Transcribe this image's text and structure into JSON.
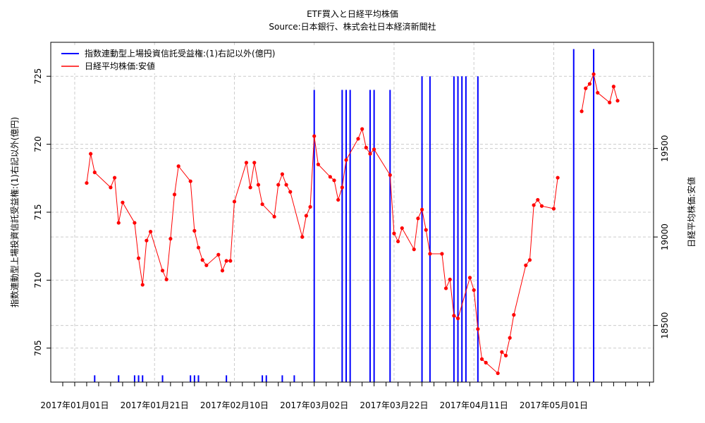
{
  "chart_data": {
    "type": "line",
    "title": "ETF買入と日経平均株価",
    "subtitle": "Source:日本銀行、株式会社日本経済新聞社",
    "ylabel_left": "指数連動型上場投資信託受益権:(1)右記以外(億円)",
    "ylabel_right": "日経平均株価:安値",
    "x_start": "2016-12-26",
    "x_end": "2017-05-26",
    "x_tick_labels": [
      "2017年01月01日",
      "2017年01月21日",
      "2017年02月10日",
      "2017年03月02日",
      "2017年03月22日",
      "2017年04月11日",
      "2017年05月01日"
    ],
    "y_left": {
      "ticks": [
        705,
        710,
        715,
        720,
        725
      ],
      "range": [
        702.5,
        727.5
      ]
    },
    "y_right": {
      "ticks": [
        18500,
        19000,
        19500
      ],
      "range": [
        18180,
        20100
      ]
    },
    "grid": true,
    "legend_position": "top-left",
    "series": [
      {
        "name": "指数連動型上場投資信託受益権:(1)右記以外(億円)",
        "color": "#0000ff",
        "axis": "left",
        "style": "vertical-bars",
        "points": [
          [
            "2017-01-06",
            703
          ],
          [
            "2017-01-12",
            703
          ],
          [
            "2017-01-16",
            703
          ],
          [
            "2017-01-17",
            703
          ],
          [
            "2017-01-18",
            703
          ],
          [
            "2017-01-23",
            703
          ],
          [
            "2017-01-30",
            703
          ],
          [
            "2017-01-31",
            703
          ],
          [
            "2017-02-01",
            703
          ],
          [
            "2017-02-08",
            703
          ],
          [
            "2017-02-17",
            703
          ],
          [
            "2017-02-18",
            703
          ],
          [
            "2017-02-22",
            703
          ],
          [
            "2017-02-25",
            703
          ],
          [
            "2017-03-02",
            724
          ],
          [
            "2017-03-09",
            724
          ],
          [
            "2017-03-10",
            724
          ],
          [
            "2017-03-11",
            724
          ],
          [
            "2017-03-16",
            724
          ],
          [
            "2017-03-17",
            724
          ],
          [
            "2017-03-21",
            724
          ],
          [
            "2017-03-29",
            725
          ],
          [
            "2017-03-31",
            725
          ],
          [
            "2017-04-06",
            725
          ],
          [
            "2017-04-07",
            725
          ],
          [
            "2017-04-08",
            725
          ],
          [
            "2017-04-09",
            725
          ],
          [
            "2017-04-12",
            725
          ],
          [
            "2017-05-06",
            727
          ],
          [
            "2017-05-11",
            727
          ]
        ]
      },
      {
        "name": "日経平均株価:安値",
        "color": "#ff0000",
        "axis": "right",
        "style": "line-points",
        "points": [
          [
            "2017-01-04",
            19305
          ],
          [
            "2017-01-05",
            19470
          ],
          [
            "2017-01-06",
            19365
          ],
          [
            "2017-01-10",
            19280
          ],
          [
            "2017-01-11",
            19335
          ],
          [
            "2017-01-12",
            19080
          ],
          [
            "2017-01-13",
            19195
          ],
          [
            "2017-01-16",
            19080
          ],
          [
            "2017-01-17",
            18880
          ],
          [
            "2017-01-18",
            18730
          ],
          [
            "2017-01-19",
            18980
          ],
          [
            "2017-01-20",
            19030
          ],
          [
            "2017-01-23",
            18810
          ],
          [
            "2017-01-24",
            18760
          ],
          [
            "2017-01-25",
            18990
          ],
          [
            "2017-01-26",
            19240
          ],
          [
            "2017-01-27",
            19400
          ],
          [
            "2017-01-30",
            19315
          ],
          [
            "2017-01-31",
            19035
          ],
          [
            "2017-02-01",
            18940
          ],
          [
            "2017-02-02",
            18870
          ],
          [
            "2017-02-03",
            18840
          ],
          [
            "2017-02-06",
            18900
          ],
          [
            "2017-02-07",
            18810
          ],
          [
            "2017-02-08",
            18865
          ],
          [
            "2017-02-09",
            18865
          ],
          [
            "2017-02-10",
            19200
          ],
          [
            "2017-02-13",
            19420
          ],
          [
            "2017-02-14",
            19280
          ],
          [
            "2017-02-15",
            19420
          ],
          [
            "2017-02-16",
            19295
          ],
          [
            "2017-02-17",
            19185
          ],
          [
            "2017-02-20",
            19115
          ],
          [
            "2017-02-21",
            19295
          ],
          [
            "2017-02-22",
            19355
          ],
          [
            "2017-02-23",
            19295
          ],
          [
            "2017-02-24",
            19255
          ],
          [
            "2017-02-27",
            19000
          ],
          [
            "2017-02-28",
            19120
          ],
          [
            "2017-03-01",
            19170
          ],
          [
            "2017-03-02",
            19570
          ],
          [
            "2017-03-03",
            19410
          ],
          [
            "2017-03-06",
            19340
          ],
          [
            "2017-03-07",
            19320
          ],
          [
            "2017-03-08",
            19210
          ],
          [
            "2017-03-09",
            19280
          ],
          [
            "2017-03-10",
            19435
          ],
          [
            "2017-03-13",
            19555
          ],
          [
            "2017-03-14",
            19610
          ],
          [
            "2017-03-15",
            19505
          ],
          [
            "2017-03-16",
            19470
          ],
          [
            "2017-03-17",
            19495
          ],
          [
            "2017-03-21",
            19350
          ],
          [
            "2017-03-22",
            19020
          ],
          [
            "2017-03-23",
            18975
          ],
          [
            "2017-03-24",
            19050
          ],
          [
            "2017-03-27",
            18930
          ],
          [
            "2017-03-28",
            19105
          ],
          [
            "2017-03-29",
            19155
          ],
          [
            "2017-03-30",
            19040
          ],
          [
            "2017-03-31",
            18905
          ],
          [
            "2017-04-03",
            18905
          ],
          [
            "2017-04-04",
            18710
          ],
          [
            "2017-04-05",
            18760
          ],
          [
            "2017-04-06",
            18555
          ],
          [
            "2017-04-07",
            18540
          ],
          [
            "2017-04-10",
            18770
          ],
          [
            "2017-04-11",
            18700
          ],
          [
            "2017-04-12",
            18480
          ],
          [
            "2017-04-13",
            18310
          ],
          [
            "2017-04-14",
            18290
          ],
          [
            "2017-04-17",
            18230
          ],
          [
            "2017-04-18",
            18350
          ],
          [
            "2017-04-19",
            18330
          ],
          [
            "2017-04-20",
            18430
          ],
          [
            "2017-04-21",
            18560
          ],
          [
            "2017-04-24",
            18840
          ],
          [
            "2017-04-25",
            18870
          ],
          [
            "2017-04-26",
            19180
          ],
          [
            "2017-04-27",
            19210
          ],
          [
            "2017-04-28",
            19175
          ],
          [
            "2017-05-01",
            19160
          ],
          [
            "2017-05-02",
            19335
          ],
          [
            "2017-05-08",
            19710
          ],
          [
            "2017-05-09",
            19840
          ],
          [
            "2017-05-10",
            19865
          ],
          [
            "2017-05-11",
            19920
          ],
          [
            "2017-05-12",
            19815
          ],
          [
            "2017-05-15",
            19760
          ],
          [
            "2017-05-16",
            19850
          ],
          [
            "2017-05-17",
            19770
          ]
        ]
      }
    ]
  }
}
